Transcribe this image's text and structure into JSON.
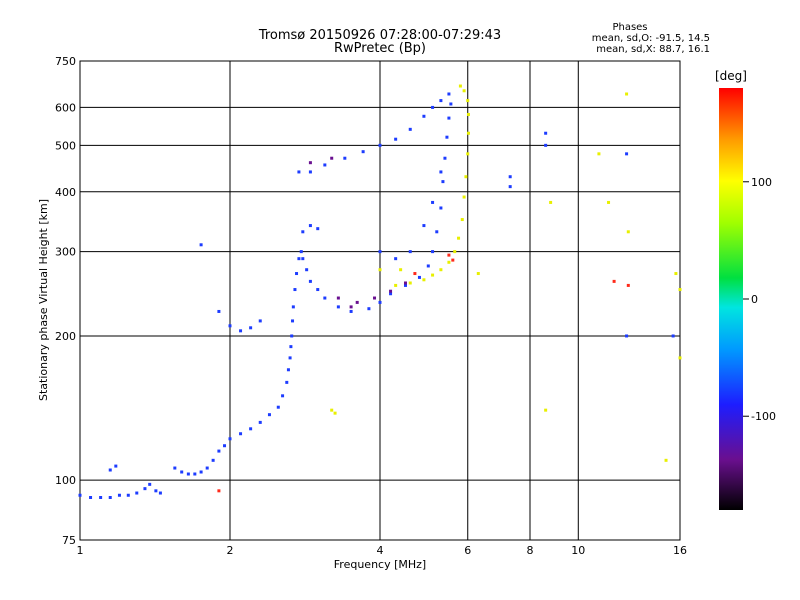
{
  "chart_data": {
    "type": "scatter",
    "title": "Tromsø 20150926 07:28:00-07:29:43",
    "subtitle": "RwPretec (Bp)",
    "xlabel": "Frequency [MHz]",
    "ylabel": "Stationary phase Virtual Height [km]",
    "x_scale": "log",
    "y_scale": "log",
    "xlim": [
      1,
      16
    ],
    "ylim": [
      75,
      750
    ],
    "x_ticks": [
      1,
      2,
      4,
      6,
      8,
      10,
      16
    ],
    "y_ticks": [
      75,
      100,
      200,
      300,
      400,
      500,
      600,
      750
    ],
    "grid": true,
    "phases_box": {
      "title": "Phases",
      "line1": "mean, sd,O: -91.5, 14.5",
      "line2": "mean, sd,X:  88.7, 16.1"
    },
    "colorbar": {
      "label": "[deg]",
      "range": [
        -180,
        180
      ],
      "ticks": [
        100,
        0,
        -100
      ]
    },
    "series": [
      {
        "points": [
          [
            1.0,
            93,
            -100
          ],
          [
            1.05,
            92,
            -100
          ],
          [
            1.1,
            92,
            -100
          ],
          [
            1.15,
            92,
            -100
          ],
          [
            1.2,
            93,
            -100
          ],
          [
            1.25,
            93,
            -100
          ],
          [
            1.3,
            94,
            -100
          ],
          [
            1.35,
            96,
            -100
          ],
          [
            1.38,
            98,
            -100
          ],
          [
            1.42,
            95,
            -100
          ],
          [
            1.45,
            94,
            -100
          ],
          [
            1.15,
            105,
            -100
          ],
          [
            1.18,
            107,
            -100
          ],
          [
            1.55,
            106,
            -100
          ],
          [
            1.6,
            104,
            -100
          ],
          [
            1.65,
            103,
            -100
          ],
          [
            1.7,
            103,
            -100
          ],
          [
            1.75,
            104,
            -100
          ],
          [
            1.8,
            106,
            -100
          ],
          [
            1.85,
            110,
            -100
          ],
          [
            1.9,
            115,
            -100
          ],
          [
            1.95,
            118,
            -100
          ],
          [
            2.0,
            122,
            -100
          ],
          [
            2.1,
            125,
            -100
          ],
          [
            2.2,
            128,
            -100
          ],
          [
            2.3,
            132,
            -100
          ],
          [
            2.4,
            137,
            -100
          ],
          [
            2.5,
            142,
            -100
          ],
          [
            2.55,
            150,
            -100
          ],
          [
            2.6,
            160,
            -100
          ],
          [
            2.62,
            170,
            -100
          ],
          [
            2.64,
            180,
            -100
          ],
          [
            2.65,
            190,
            -100
          ],
          [
            2.66,
            200,
            -100
          ],
          [
            2.67,
            215,
            -100
          ],
          [
            2.68,
            230,
            -100
          ],
          [
            2.7,
            250,
            -100
          ],
          [
            2.72,
            270,
            -100
          ],
          [
            2.75,
            290,
            -100
          ],
          [
            2.78,
            300,
            -100
          ],
          [
            2.8,
            290,
            -100
          ],
          [
            2.85,
            275,
            -100
          ],
          [
            2.9,
            260,
            -100
          ],
          [
            3.0,
            250,
            -100
          ],
          [
            3.1,
            240,
            -100
          ],
          [
            3.3,
            230,
            -100
          ],
          [
            3.5,
            225,
            -100
          ],
          [
            3.8,
            228,
            -100
          ],
          [
            4.0,
            235,
            -100
          ],
          [
            4.2,
            245,
            -100
          ],
          [
            4.5,
            255,
            -100
          ],
          [
            4.8,
            265,
            -100
          ],
          [
            5.0,
            280,
            -100
          ],
          [
            5.1,
            300,
            -100
          ],
          [
            5.2,
            330,
            -100
          ],
          [
            5.3,
            370,
            -100
          ],
          [
            5.35,
            420,
            -100
          ],
          [
            5.4,
            470,
            -100
          ],
          [
            5.45,
            520,
            -100
          ],
          [
            5.5,
            570,
            -100
          ],
          [
            5.55,
            610,
            -100
          ],
          [
            1.9,
            225,
            -100
          ],
          [
            2.0,
            210,
            -100
          ],
          [
            2.1,
            205,
            -100
          ],
          [
            2.2,
            208,
            -100
          ],
          [
            2.3,
            215,
            -100
          ],
          [
            2.75,
            440,
            -100
          ],
          [
            2.9,
            440,
            -100
          ],
          [
            3.1,
            455,
            -100
          ],
          [
            3.4,
            470,
            -100
          ],
          [
            3.7,
            485,
            -100
          ],
          [
            4.0,
            500,
            -100
          ],
          [
            4.3,
            515,
            -100
          ],
          [
            4.6,
            540,
            -100
          ],
          [
            4.9,
            575,
            -100
          ],
          [
            5.1,
            600,
            -100
          ],
          [
            5.3,
            620,
            -100
          ],
          [
            5.5,
            640,
            -100
          ],
          [
            2.8,
            330,
            -100
          ],
          [
            2.9,
            340,
            -100
          ],
          [
            3.0,
            335,
            -100
          ],
          [
            4.0,
            300,
            -100
          ],
          [
            4.3,
            290,
            -100
          ],
          [
            4.6,
            300,
            -100
          ],
          [
            4.9,
            340,
            -100
          ],
          [
            5.1,
            380,
            -100
          ],
          [
            5.3,
            440,
            -100
          ],
          [
            1.75,
            310,
            -100
          ],
          [
            7.3,
            430,
            -100
          ],
          [
            7.3,
            410,
            -100
          ],
          [
            8.6,
            530,
            -100
          ],
          [
            8.6,
            500,
            -100
          ],
          [
            12.5,
            480,
            -100
          ],
          [
            12.5,
            200,
            -100
          ],
          [
            15.5,
            200,
            -100
          ]
        ]
      },
      {
        "points": [
          [
            3.3,
            240,
            -150
          ],
          [
            3.6,
            235,
            -150
          ],
          [
            3.9,
            240,
            -150
          ],
          [
            4.2,
            248,
            -150
          ],
          [
            4.5,
            258,
            -150
          ],
          [
            2.9,
            460,
            -150
          ],
          [
            3.2,
            470,
            -150
          ],
          [
            3.5,
            230,
            -150
          ]
        ]
      },
      {
        "points": [
          [
            4.3,
            255,
            95
          ],
          [
            4.6,
            258,
            95
          ],
          [
            4.9,
            262,
            95
          ],
          [
            5.1,
            268,
            95
          ],
          [
            5.3,
            275,
            95
          ],
          [
            5.5,
            285,
            95
          ],
          [
            5.65,
            300,
            95
          ],
          [
            5.75,
            320,
            95
          ],
          [
            5.85,
            350,
            95
          ],
          [
            5.9,
            390,
            95
          ],
          [
            5.95,
            430,
            95
          ],
          [
            6.0,
            480,
            95
          ],
          [
            6.02,
            530,
            95
          ],
          [
            6.02,
            580,
            95
          ],
          [
            6.0,
            620,
            95
          ],
          [
            5.9,
            650,
            95
          ],
          [
            5.8,
            665,
            95
          ],
          [
            4.0,
            275,
            95
          ],
          [
            4.4,
            275,
            95
          ],
          [
            3.2,
            140,
            90
          ],
          [
            3.25,
            138,
            90
          ],
          [
            6.3,
            270,
            90
          ],
          [
            8.6,
            140,
            90
          ],
          [
            8.8,
            380,
            90
          ],
          [
            11.5,
            380,
            90
          ],
          [
            12.6,
            330,
            90
          ],
          [
            15.7,
            270,
            90
          ],
          [
            16.0,
            250,
            90
          ],
          [
            16.0,
            180,
            90
          ],
          [
            12.5,
            640,
            90
          ],
          [
            15.0,
            110,
            90
          ],
          [
            11.0,
            480,
            90
          ]
        ]
      },
      {
        "points": [
          [
            5.5,
            295,
            150
          ],
          [
            5.6,
            288,
            150
          ],
          [
            4.7,
            270,
            150
          ],
          [
            11.8,
            260,
            150
          ],
          [
            12.6,
            255,
            150
          ],
          [
            1.9,
            95,
            150
          ]
        ]
      }
    ]
  }
}
